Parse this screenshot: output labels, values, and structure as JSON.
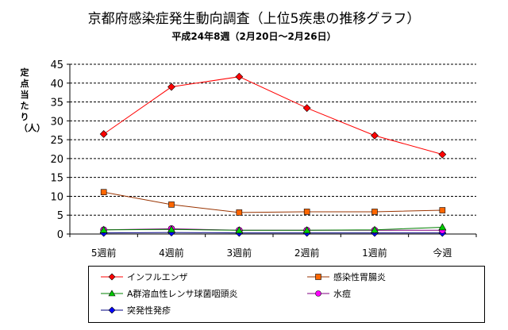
{
  "title": "京都府感染症発生動向調査（上位5疾患の推移グラフ）",
  "subtitle": "平成24年8週（2月20日～2月26日）",
  "chart_data": {
    "type": "line",
    "title": "京都府感染症発生動向調査（上位5疾患の推移グラフ）",
    "subtitle": "平成24年8週（2月20日～2月26日）",
    "ylabel": "定点当たり（人）",
    "xlabel": "",
    "categories": [
      "5週前",
      "4週前",
      "3週前",
      "2週前",
      "1週前",
      "今週"
    ],
    "ylim": [
      0,
      45
    ],
    "yticks": [
      0,
      5,
      10,
      15,
      20,
      25,
      30,
      35,
      40,
      45
    ],
    "grid": "horizontal dashed",
    "legend_position": "bottom",
    "series": [
      {
        "name": "インフルエンザ",
        "color": "#ff0000",
        "marker": "diamond",
        "values": [
          26.5,
          39.0,
          41.7,
          33.4,
          26.1,
          21.1
        ]
      },
      {
        "name": "感染性胃腸炎",
        "color": "#ff6600",
        "line_color": "#993300",
        "marker": "square",
        "values": [
          11.1,
          7.8,
          5.7,
          5.9,
          5.9,
          6.3
        ]
      },
      {
        "name": "A群溶血性レンサ球菌咽頭炎",
        "color": "#00cc00",
        "line_color": "#008000",
        "marker": "triangle",
        "values": [
          1.1,
          1.2,
          1.0,
          1.0,
          1.1,
          1.8
        ]
      },
      {
        "name": "水痘",
        "color": "#ff00ff",
        "line_color": "#800080",
        "marker": "circle",
        "values": [
          1.1,
          1.4,
          1.0,
          1.0,
          1.0,
          1.0
        ]
      },
      {
        "name": "突発性発疹",
        "color": "#0000ff",
        "line_color": "#000080",
        "marker": "diamond",
        "values": [
          0.3,
          0.4,
          0.3,
          0.3,
          0.3,
          0.3
        ]
      }
    ]
  }
}
